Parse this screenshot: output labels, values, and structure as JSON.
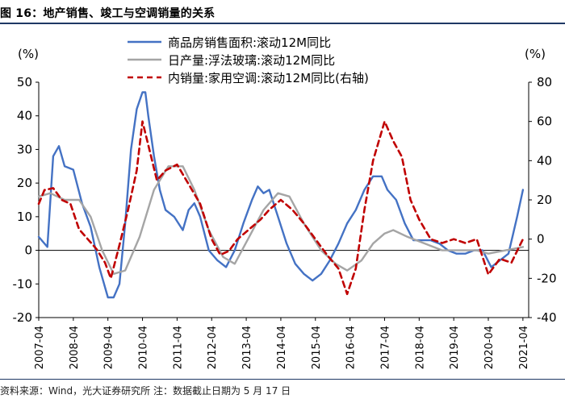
{
  "title": "图 16：地产销售、竣工与空调销量的关系",
  "source": "资料来源：Wind，光大证券研究所    注：数据截止日期为 5 月 17 日",
  "chart_data": {
    "type": "line",
    "title": "",
    "left_axis": {
      "unit": "(%)",
      "ylim": [
        -20,
        50
      ],
      "ticks": [
        50,
        40,
        30,
        20,
        10,
        0,
        -10,
        -20
      ]
    },
    "right_axis": {
      "unit": "(%)",
      "ylim": [
        -40,
        80
      ],
      "ticks": [
        80,
        60,
        40,
        20,
        0,
        -20,
        -40
      ]
    },
    "x_ticks": [
      "2007-04",
      "2008-04",
      "2009-04",
      "2010-04",
      "2011-04",
      "2012-04",
      "2013-04",
      "2014-04",
      "2015-04",
      "2016-04",
      "2017-04",
      "2018-04",
      "2019-04",
      "2020-04",
      "2021-04"
    ],
    "xlim": [
      "2007-04",
      "2021-06"
    ],
    "legend_position": "top",
    "grid": false,
    "series": [
      {
        "name": "商品房销售面积:滚动12M同比",
        "axis": "left",
        "color": "#4472c4",
        "style": "solid",
        "points": [
          [
            "2007-04",
            4
          ],
          [
            "2007-07",
            1
          ],
          [
            "2007-09",
            28
          ],
          [
            "2007-11",
            31
          ],
          [
            "2008-01",
            25
          ],
          [
            "2008-04",
            24
          ],
          [
            "2008-07",
            14
          ],
          [
            "2008-10",
            7
          ],
          [
            "2009-01",
            -5
          ],
          [
            "2009-04",
            -14
          ],
          [
            "2009-06",
            -14
          ],
          [
            "2009-08",
            -10
          ],
          [
            "2009-10",
            8
          ],
          [
            "2009-12",
            30
          ],
          [
            "2010-02",
            42
          ],
          [
            "2010-04",
            47
          ],
          [
            "2010-05",
            47
          ],
          [
            "2010-06",
            40
          ],
          [
            "2010-08",
            28
          ],
          [
            "2010-10",
            18
          ],
          [
            "2010-12",
            12
          ],
          [
            "2011-03",
            10
          ],
          [
            "2011-06",
            6
          ],
          [
            "2011-08",
            12
          ],
          [
            "2011-10",
            14
          ],
          [
            "2011-12",
            10
          ],
          [
            "2012-03",
            0
          ],
          [
            "2012-06",
            -3
          ],
          [
            "2012-09",
            -5
          ],
          [
            "2012-12",
            0
          ],
          [
            "2013-03",
            8
          ],
          [
            "2013-06",
            15
          ],
          [
            "2013-08",
            19
          ],
          [
            "2013-10",
            17
          ],
          [
            "2013-12",
            18
          ],
          [
            "2014-03",
            10
          ],
          [
            "2014-06",
            2
          ],
          [
            "2014-09",
            -4
          ],
          [
            "2014-12",
            -7
          ],
          [
            "2015-03",
            -9
          ],
          [
            "2015-06",
            -7
          ],
          [
            "2015-09",
            -3
          ],
          [
            "2015-12",
            2
          ],
          [
            "2016-03",
            8
          ],
          [
            "2016-06",
            12
          ],
          [
            "2016-09",
            18
          ],
          [
            "2016-12",
            22
          ],
          [
            "2017-03",
            22
          ],
          [
            "2017-05",
            18
          ],
          [
            "2017-08",
            15
          ],
          [
            "2017-11",
            8
          ],
          [
            "2018-02",
            3
          ],
          [
            "2018-05",
            3
          ],
          [
            "2018-08",
            3
          ],
          [
            "2018-11",
            2
          ],
          [
            "2019-02",
            0
          ],
          [
            "2019-05",
            -1
          ],
          [
            "2019-08",
            -1
          ],
          [
            "2019-11",
            0
          ],
          [
            "2020-02",
            0
          ],
          [
            "2020-05",
            -5
          ],
          [
            "2020-08",
            -3
          ],
          [
            "2020-11",
            -1
          ],
          [
            "2021-02",
            10
          ],
          [
            "2021-04",
            18
          ]
        ]
      },
      {
        "name": "日产量:浮法玻璃:滚动12M同比",
        "axis": "left",
        "color": "#a5a5a5",
        "style": "solid",
        "points": [
          [
            "2007-04",
            16
          ],
          [
            "2007-08",
            17
          ],
          [
            "2008-01",
            15
          ],
          [
            "2008-06",
            15
          ],
          [
            "2008-10",
            10
          ],
          [
            "2009-02",
            0
          ],
          [
            "2009-06",
            -7
          ],
          [
            "2009-10",
            -6
          ],
          [
            "2010-03",
            4
          ],
          [
            "2010-08",
            18
          ],
          [
            "2011-01",
            25
          ],
          [
            "2011-06",
            25
          ],
          [
            "2011-10",
            18
          ],
          [
            "2012-03",
            6
          ],
          [
            "2012-08",
            -2
          ],
          [
            "2012-12",
            -4
          ],
          [
            "2013-05",
            4
          ],
          [
            "2013-10",
            12
          ],
          [
            "2014-03",
            17
          ],
          [
            "2014-07",
            16
          ],
          [
            "2014-12",
            8
          ],
          [
            "2015-06",
            0
          ],
          [
            "2015-11",
            -4
          ],
          [
            "2016-03",
            -6
          ],
          [
            "2016-08",
            -3
          ],
          [
            "2016-12",
            2
          ],
          [
            "2017-04",
            5
          ],
          [
            "2017-07",
            6
          ],
          [
            "2017-12",
            4
          ],
          [
            "2018-06",
            2
          ],
          [
            "2018-12",
            0
          ],
          [
            "2019-06",
            0
          ],
          [
            "2019-12",
            0
          ],
          [
            "2020-04",
            -1
          ],
          [
            "2020-10",
            0
          ],
          [
            "2021-04",
            1
          ]
        ]
      },
      {
        "name": "内销量:家用空调:滚动12M同比(右轴)",
        "axis": "right",
        "color": "#c00000",
        "style": "dashed",
        "points": [
          [
            "2007-04",
            18
          ],
          [
            "2007-06",
            25
          ],
          [
            "2007-09",
            26
          ],
          [
            "2007-12",
            20
          ],
          [
            "2008-03",
            18
          ],
          [
            "2008-06",
            5
          ],
          [
            "2008-09",
            0
          ],
          [
            "2008-12",
            -5
          ],
          [
            "2009-03",
            -12
          ],
          [
            "2009-05",
            -20
          ],
          [
            "2009-08",
            -3
          ],
          [
            "2009-11",
            15
          ],
          [
            "2010-02",
            35
          ],
          [
            "2010-04",
            60
          ],
          [
            "2010-06",
            48
          ],
          [
            "2010-09",
            30
          ],
          [
            "2010-12",
            35
          ],
          [
            "2011-04",
            38
          ],
          [
            "2011-08",
            28
          ],
          [
            "2011-12",
            18
          ],
          [
            "2012-04",
            0
          ],
          [
            "2012-07",
            -8
          ],
          [
            "2012-10",
            -6
          ],
          [
            "2013-01",
            0
          ],
          [
            "2013-05",
            5
          ],
          [
            "2013-09",
            10
          ],
          [
            "2013-12",
            15
          ],
          [
            "2014-04",
            20
          ],
          [
            "2014-08",
            15
          ],
          [
            "2014-12",
            8
          ],
          [
            "2015-04",
            0
          ],
          [
            "2015-08",
            -8
          ],
          [
            "2015-12",
            -15
          ],
          [
            "2016-03",
            -28
          ],
          [
            "2016-06",
            -15
          ],
          [
            "2016-09",
            15
          ],
          [
            "2016-12",
            40
          ],
          [
            "2017-04",
            60
          ],
          [
            "2017-07",
            50
          ],
          [
            "2017-10",
            42
          ],
          [
            "2018-01",
            20
          ],
          [
            "2018-04",
            10
          ],
          [
            "2018-08",
            0
          ],
          [
            "2018-12",
            -2
          ],
          [
            "2019-04",
            0
          ],
          [
            "2019-08",
            -2
          ],
          [
            "2019-12",
            0
          ],
          [
            "2020-04",
            -18
          ],
          [
            "2020-08",
            -10
          ],
          [
            "2020-12",
            -12
          ],
          [
            "2021-02",
            -6
          ],
          [
            "2021-04",
            0
          ]
        ]
      }
    ]
  }
}
